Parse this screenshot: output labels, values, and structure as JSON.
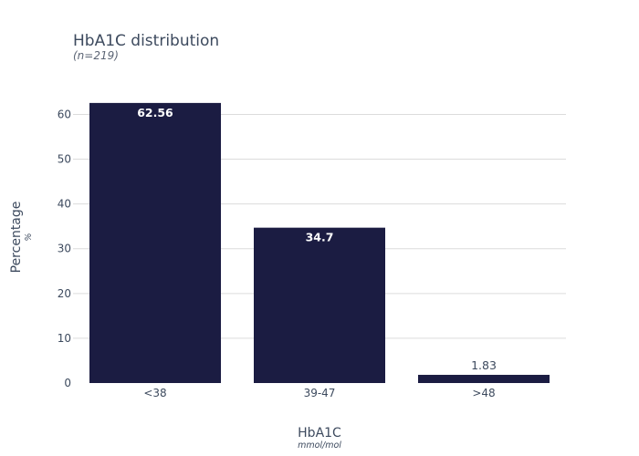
{
  "chart_data": {
    "type": "bar",
    "title": "HbA1C distribution",
    "subtitle": "(n=219)",
    "xlabel": "HbA1C",
    "xlabel_unit": "mmol/mol",
    "ylabel": "Percentage",
    "ylabel_unit": "%",
    "categories": [
      "<38",
      "39-47",
      ">48"
    ],
    "values": [
      62.56,
      34.7,
      1.83
    ],
    "value_labels": [
      "62.56",
      "34.7",
      "1.83"
    ],
    "ylim": [
      0,
      66
    ],
    "yticks": [
      0,
      10,
      20,
      30,
      40,
      50,
      60
    ],
    "ytick_labels": [
      "0",
      "10",
      "20",
      "30",
      "40",
      "50",
      "60"
    ],
    "grid": true,
    "bar_color": "#1b1c42"
  }
}
